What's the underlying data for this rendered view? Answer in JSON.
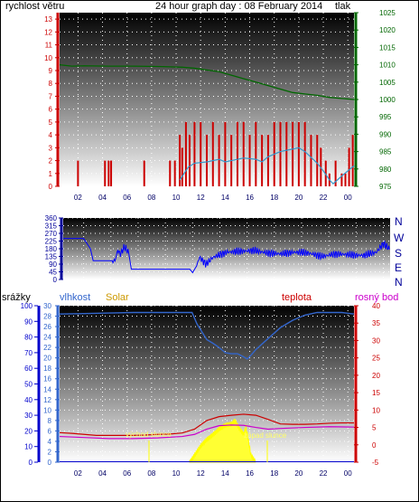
{
  "header": {
    "left_label": "rychlost větru",
    "title": "24 hour graph day : 08 February 2014",
    "right_label": "tlak"
  },
  "colors": {
    "wind": "#cc0000",
    "pressure": "#006600",
    "direction": "#000099",
    "rain": "#0000cc",
    "humidity": "#3366cc",
    "solar": "#cc9900",
    "temperature": "#cc0000",
    "dewpoint": "#cc00cc",
    "time_axis": "#000066"
  },
  "direction_labels": [
    "N",
    "W",
    "S",
    "E",
    "N"
  ],
  "bottom_header": {
    "rain": "srážky",
    "humidity": "vlhkost",
    "solar": "Solar",
    "temperature": "teplota",
    "dewpoint": "rosný bod"
  },
  "annotations": {
    "sunrise": "východ slunce",
    "sunset": "západ slunce"
  },
  "chart_data": [
    {
      "type": "line",
      "name": "wind-pressure",
      "x_ticks": [
        "02",
        "04",
        "06",
        "08",
        "10",
        "12",
        "14",
        "16",
        "18",
        "20",
        "22",
        "00"
      ],
      "y_left_ticks": [
        0,
        1,
        2,
        3,
        4,
        5,
        6,
        7,
        8,
        9,
        10,
        11,
        12,
        13
      ],
      "y_right_ticks": [
        975,
        980,
        985,
        990,
        995,
        1000,
        1005,
        1010,
        1015,
        1020,
        1025
      ],
      "ylim_left": [
        0,
        13.5
      ],
      "ylim_right": [
        975,
        1025
      ],
      "x_range": [
        0,
        24
      ],
      "series": [
        {
          "name": "rychlost větru",
          "style": "bars",
          "x": [
            1.5,
            3.7,
            4.0,
            4.2,
            6.9,
            9.0,
            9.4,
            9.8,
            10.0,
            10.3,
            10.6,
            11.0,
            11.5,
            12.0,
            12.5,
            13.0,
            13.5,
            14.0,
            14.5,
            15.0,
            15.5,
            16.0,
            16.5,
            17.0,
            17.5,
            18.0,
            18.5,
            19.0,
            19.5,
            20.0,
            20.5,
            21.0,
            21.3,
            21.7,
            22.0,
            22.5,
            23.0,
            23.3,
            23.6,
            23.9
          ],
          "values": [
            2,
            2,
            2,
            2,
            2,
            2,
            2,
            4,
            3,
            5,
            4,
            5,
            5,
            4,
            5,
            4,
            5,
            4,
            5,
            5,
            4,
            5,
            4,
            4,
            5,
            5,
            5,
            5,
            5,
            5,
            4,
            4,
            3,
            2,
            1,
            2,
            1,
            1,
            3,
            4
          ]
        },
        {
          "name": "gust-mean",
          "style": "line",
          "x": [
            9.8,
            10.5,
            11,
            12,
            13,
            13.5,
            14,
            15,
            16,
            16.5,
            17,
            18,
            19,
            19.5,
            20,
            21,
            21.5,
            22,
            22.3,
            23,
            23.5,
            24
          ],
          "values": [
            0.5,
            1.5,
            1.8,
            1.9,
            2.1,
            1.9,
            2.0,
            2.2,
            2.1,
            1.9,
            2.3,
            2.7,
            2.9,
            3.0,
            2.7,
            1.8,
            1.2,
            0.5,
            0.2,
            0.8,
            1.2,
            1.6
          ]
        },
        {
          "name": "tlak",
          "style": "line",
          "axis": "right",
          "x": [
            0,
            1,
            2,
            4,
            6,
            8,
            9,
            10,
            11,
            12,
            13,
            14,
            15,
            16,
            17,
            18,
            19,
            20,
            21,
            22,
            23,
            24
          ],
          "values": [
            1010,
            1009.6,
            1009.7,
            1009.6,
            1009.6,
            1009.5,
            1009.4,
            1009.3,
            1009,
            1008.5,
            1008,
            1007,
            1006,
            1005,
            1004,
            1003,
            1002,
            1001.6,
            1001.2,
            1000.6,
            1000.3,
            1000
          ]
        }
      ]
    },
    {
      "type": "line",
      "name": "wind-direction",
      "y_ticks": [
        0,
        45,
        90,
        135,
        180,
        225,
        270,
        315,
        360
      ],
      "ylim": [
        0,
        360
      ],
      "x_range": [
        0,
        24
      ],
      "series": [
        {
          "name": "direction",
          "x": [
            0,
            0.8,
            1.5,
            2,
            2.2,
            3,
            3.8,
            4,
            4.2,
            4.5,
            4.8,
            5,
            5.5,
            6,
            7,
            8,
            9,
            9.3,
            9.5,
            9.8,
            10,
            10.5,
            11,
            12,
            13,
            14,
            15,
            16,
            17,
            18,
            19,
            20,
            21,
            22,
            23,
            23.5,
            24
          ],
          "values": [
            240,
            240,
            240,
            180,
            110,
            110,
            110,
            170,
            150,
            190,
            160,
            60,
            60,
            60,
            60,
            60,
            60,
            60,
            40,
            80,
            130,
            90,
            130,
            160,
            165,
            170,
            155,
            150,
            160,
            155,
            135,
            150,
            145,
            140,
            160,
            210,
            175
          ]
        }
      ]
    },
    {
      "type": "line",
      "name": "rain-humidity-solar-temperature",
      "y_rain_ticks": [
        0,
        10,
        20,
        30,
        40,
        50,
        60,
        70,
        80,
        90,
        100
      ],
      "y_humidity_ticks": [
        0,
        2,
        4,
        6,
        8,
        10,
        12,
        14,
        16,
        18,
        20,
        22,
        24,
        26,
        28,
        30
      ],
      "y_temp_ticks": [
        -5,
        0,
        5,
        10,
        15,
        20,
        25,
        30,
        35,
        40
      ],
      "ylim_temp": [
        -5,
        40
      ],
      "ylim_humidity": [
        0,
        30
      ],
      "x_range": [
        0,
        24
      ],
      "series": [
        {
          "name": "vlhkost",
          "axis": "left",
          "x": [
            0,
            2,
            4,
            6,
            8,
            10,
            10.8,
            11.2,
            11.6,
            12,
            12.5,
            13,
            13.5,
            14,
            14.5,
            15,
            15.3,
            15.6,
            16,
            17,
            18,
            19,
            20,
            21,
            22,
            23,
            24
          ],
          "values": [
            28.4,
            28.5,
            28.6,
            28.7,
            28.7,
            28.7,
            28.7,
            26.5,
            25,
            23.5,
            22.8,
            22.0,
            21.0,
            20.8,
            20.8,
            20.2,
            19.8,
            20.5,
            21.6,
            23.7,
            25.8,
            27.2,
            28.2,
            28.7,
            28.7,
            28.7,
            28.4
          ]
        },
        {
          "name": "teplota",
          "axis": "right",
          "x": [
            0,
            1,
            2,
            3,
            4,
            5,
            6,
            7,
            8,
            9,
            10,
            11,
            12,
            13,
            14,
            15,
            16,
            17,
            18,
            19,
            20,
            21,
            22,
            23,
            24
          ],
          "values": [
            3.5,
            3.3,
            3.0,
            2.7,
            2.7,
            2.7,
            2.7,
            2.8,
            3.0,
            3.1,
            3.4,
            4.5,
            7.0,
            8.1,
            8.5,
            8.8,
            8.5,
            7.3,
            6.0,
            5.9,
            5.9,
            6.0,
            6.2,
            6.3,
            6.3
          ]
        },
        {
          "name": "rosný bod",
          "axis": "right",
          "x": [
            0,
            2,
            4,
            6,
            8,
            10,
            11,
            12,
            13,
            14,
            15,
            16,
            17,
            18,
            20,
            22,
            24
          ],
          "values": [
            2.4,
            2.1,
            1.8,
            1.8,
            2.0,
            2.4,
            3.0,
            4.5,
            5.5,
            5.7,
            5.6,
            5.0,
            4.5,
            4.7,
            5.0,
            5.2,
            5.1
          ]
        },
        {
          "name": "Solar",
          "style": "area",
          "axis": "right",
          "x": [
            10.6,
            11.0,
            11.5,
            12.0,
            12.5,
            13.0,
            13.5,
            14.0,
            14.3,
            14.6,
            15.0,
            15.2,
            15.4,
            15.6,
            16.0
          ],
          "values": [
            -5,
            -3,
            -0.5,
            1.5,
            3,
            4.5,
            5.5,
            6,
            7,
            5,
            3,
            5,
            1,
            -3,
            -5
          ]
        }
      ]
    }
  ]
}
